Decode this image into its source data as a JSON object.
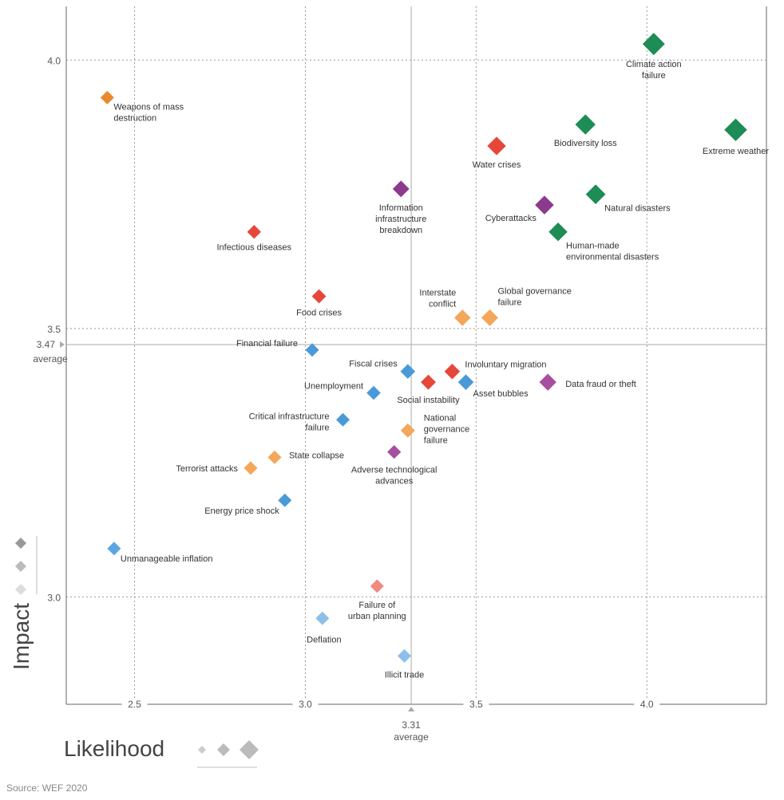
{
  "chart_data": {
    "type": "scatter",
    "x_title": "Likelihood",
    "y_title": "Impact",
    "source": "Source: WEF 2020",
    "x_average": 3.31,
    "y_average": 3.47,
    "average_label": "average",
    "xlim": [
      2.3,
      4.35
    ],
    "ylim": [
      2.8,
      4.1
    ],
    "xticks": [
      2.5,
      {
        "value": 3,
        "label": "3.0"
      },
      3.5,
      {
        "value": 4,
        "label": "4.0"
      }
    ],
    "yticks": [
      {
        "value": 3,
        "label": "3.0"
      },
      3.5,
      {
        "value": 4,
        "label": "4.0"
      }
    ],
    "grid": true,
    "labels": [
      "Climate action\nfailure",
      "Biodiversity loss",
      "Extreme weather",
      "Water crises",
      "Information\ninfrastructure\nbreakdown",
      "Natural disasters",
      "Cyberattacks",
      "Human-made\nenvironmental disasters",
      "Infectious diseases",
      "Weapons of mass\ndestruction",
      "Food crises",
      "Interstate\nconflict",
      "Global governance\nfailure",
      "Financial failure",
      "Fiscal crises",
      "Involuntary migration",
      "Social instability",
      "Asset bubbles",
      "Data fraud or theft",
      "Unemployment",
      "Critical infrastructure\nfailure",
      "National\ngovernance\nfailure",
      "Adverse technological\nadvances",
      "State collapse",
      "Terrorist attacks",
      "Energy price shock",
      "Unmanageable inflation",
      "Failure of\nurban planning",
      "Deflation",
      "Illicit trade"
    ],
    "x": [
      4.02,
      3.82,
      4.26,
      3.56,
      3.28,
      3.85,
      3.7,
      3.74,
      2.85,
      2.42,
      3.04,
      3.46,
      3.54,
      3.02,
      3.3,
      3.43,
      3.36,
      3.47,
      3.71,
      3.2,
      3.11,
      3.3,
      3.26,
      2.91,
      2.84,
      2.94,
      2.44,
      3.21,
      3.05,
      3.29
    ],
    "y": [
      4.03,
      3.88,
      3.87,
      3.84,
      3.76,
      3.75,
      3.73,
      3.68,
      3.68,
      3.93,
      3.56,
      3.52,
      3.52,
      3.46,
      3.42,
      3.42,
      3.4,
      3.4,
      3.4,
      3.38,
      3.33,
      3.31,
      3.27,
      3.26,
      3.24,
      3.18,
      3.09,
      3.02,
      2.96,
      2.89
    ],
    "colors": [
      "#1e8c55",
      "#1e8c55",
      "#1e8c55",
      "#e5473a",
      "#8b3a8e",
      "#1e8c55",
      "#8b3a8e",
      "#1e8c55",
      "#e5473a",
      "#e98a2d",
      "#e5473a",
      "#f4a65a",
      "#f4a65a",
      "#4b9ad8",
      "#4b9ad8",
      "#e5473a",
      "#e5473a",
      "#4b9ad8",
      "#a54fa0",
      "#4b9ad8",
      "#4b9ad8",
      "#f4a65a",
      "#a54fa0",
      "#f4a65a",
      "#f4a65a",
      "#4b9ad8",
      "#5aa6e0",
      "#ef8a80",
      "#8cc0ea",
      "#8cc0ea"
    ]
  }
}
